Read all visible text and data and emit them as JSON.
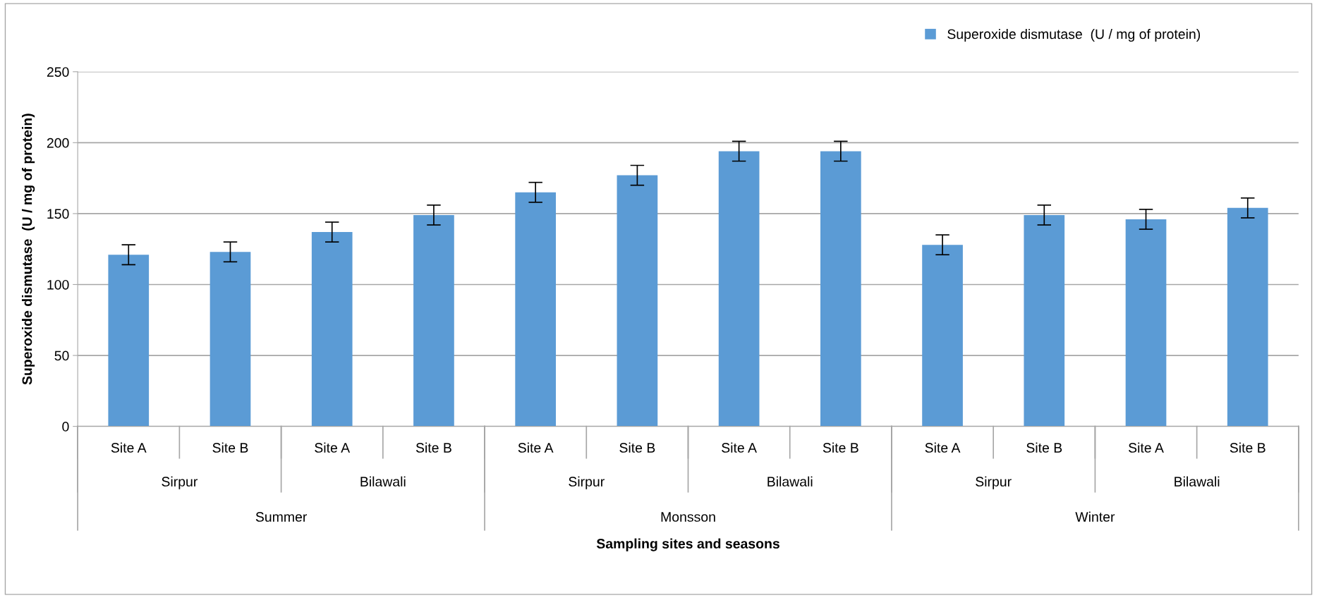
{
  "chart_data": {
    "type": "bar",
    "categories": [
      "Site A",
      "Site B",
      "Site A",
      "Site B",
      "Site A",
      "Site B",
      "Site A",
      "Site B",
      "Site A",
      "Site B",
      "Site A",
      "Site B"
    ],
    "series": [
      {
        "name": "Superoxide dismutase  (U / mg of protein)",
        "color": "#5b9bd5",
        "values": [
          121,
          123,
          137,
          149,
          165,
          177,
          194,
          194,
          128,
          149,
          146,
          154
        ],
        "errors": [
          7,
          7,
          7,
          7,
          7,
          7,
          7,
          7,
          7,
          7,
          7,
          7
        ]
      }
    ],
    "annotations": [
      "Sirpur",
      "Bilawali",
      "Sirpur",
      "Bilawali",
      "Sirpur",
      "Bilawali",
      "Summer",
      "Monsson",
      "Winter",
      "Sampling sites and seasons"
    ],
    "ylabel": "Superoxide dismutase  (U / mg of protein)",
    "ylim": [
      0,
      250
    ],
    "yticks": [
      0,
      50,
      100,
      150,
      200,
      250
    ],
    "grid": "y",
    "legend": "top right"
  }
}
